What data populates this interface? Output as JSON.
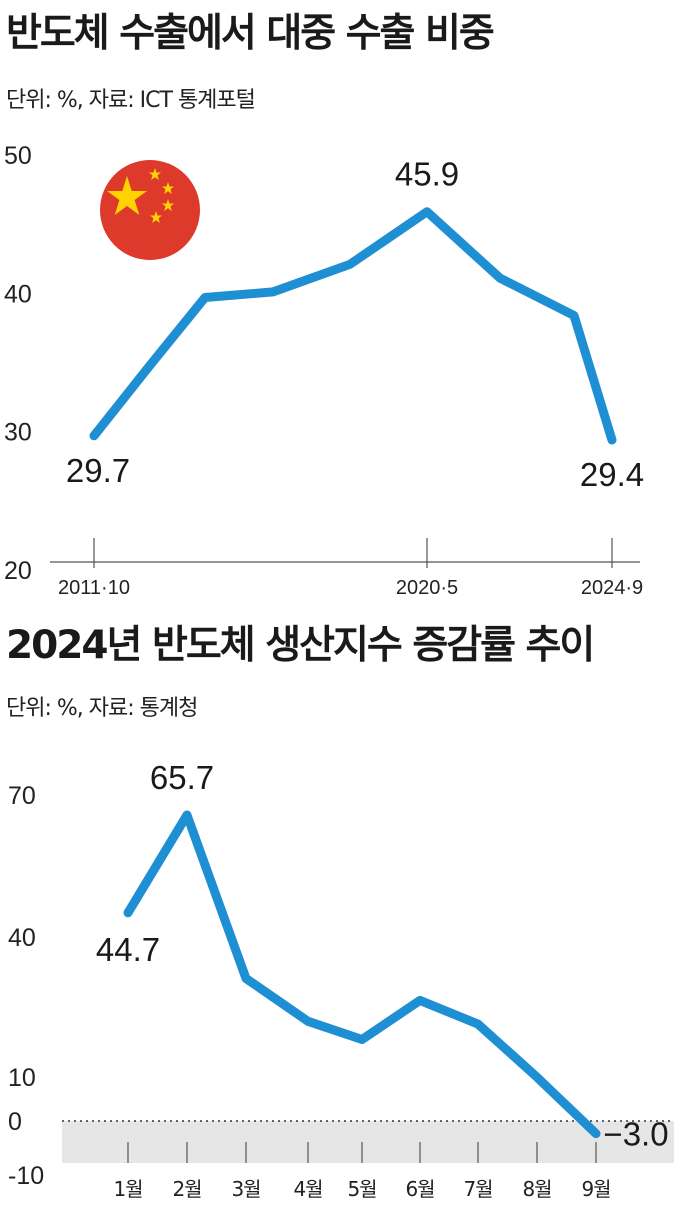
{
  "charts": [
    {
      "title": "반도체 수출에서 대중 수출 비중",
      "subtitle": "단위: %, 자료: ICT 통계포털",
      "icon": "china-flag-icon",
      "colors": {
        "line": "#1f8fd4",
        "flag_red": "#de3a2c",
        "flag_star": "#ffd200"
      }
    },
    {
      "title": "2024년 반도체 생산지수 증감률 추이",
      "subtitle": "단위: %, 자료: 통계청",
      "colors": {
        "line": "#1f8fd4",
        "negative_band": "#e6e6e6"
      }
    }
  ],
  "chart_data": [
    {
      "type": "line",
      "x": [
        "2011·10",
        "",
        "",
        "",
        "",
        "2020·5",
        "",
        "",
        "2024·9"
      ],
      "x_tick_labels": [
        "2011·10",
        "2020·5",
        "2024·9"
      ],
      "y_tick_labels": [
        "50",
        "40",
        "30",
        "20"
      ],
      "ylim": [
        20,
        50
      ],
      "series": [
        {
          "values": [
            29.7,
            34.8,
            39.7,
            40.1,
            42.1,
            45.9,
            41.1,
            38.4,
            29.4
          ]
        }
      ],
      "data_labels": [
        {
          "index": 0,
          "text": "29.7"
        },
        {
          "index": 5,
          "text": "45.9"
        },
        {
          "index": 8,
          "text": "29.4"
        }
      ]
    },
    {
      "type": "line",
      "categories": [
        "1월",
        "2월",
        "3월",
        "4월",
        "5월",
        "6월",
        "7월",
        "8월",
        "9월"
      ],
      "y_tick_labels": [
        "70",
        "40",
        "10",
        "0",
        "-10"
      ],
      "ylim": [
        -10,
        70
      ],
      "series": [
        {
          "values": [
            44.7,
            65.7,
            30.6,
            21.4,
            17.5,
            25.9,
            20.8,
            9.4,
            -3.0
          ]
        }
      ],
      "data_labels": [
        {
          "index": 0,
          "text": "44.7"
        },
        {
          "index": 1,
          "text": "65.7"
        },
        {
          "index": 8,
          "text": "−3.0"
        }
      ]
    }
  ]
}
